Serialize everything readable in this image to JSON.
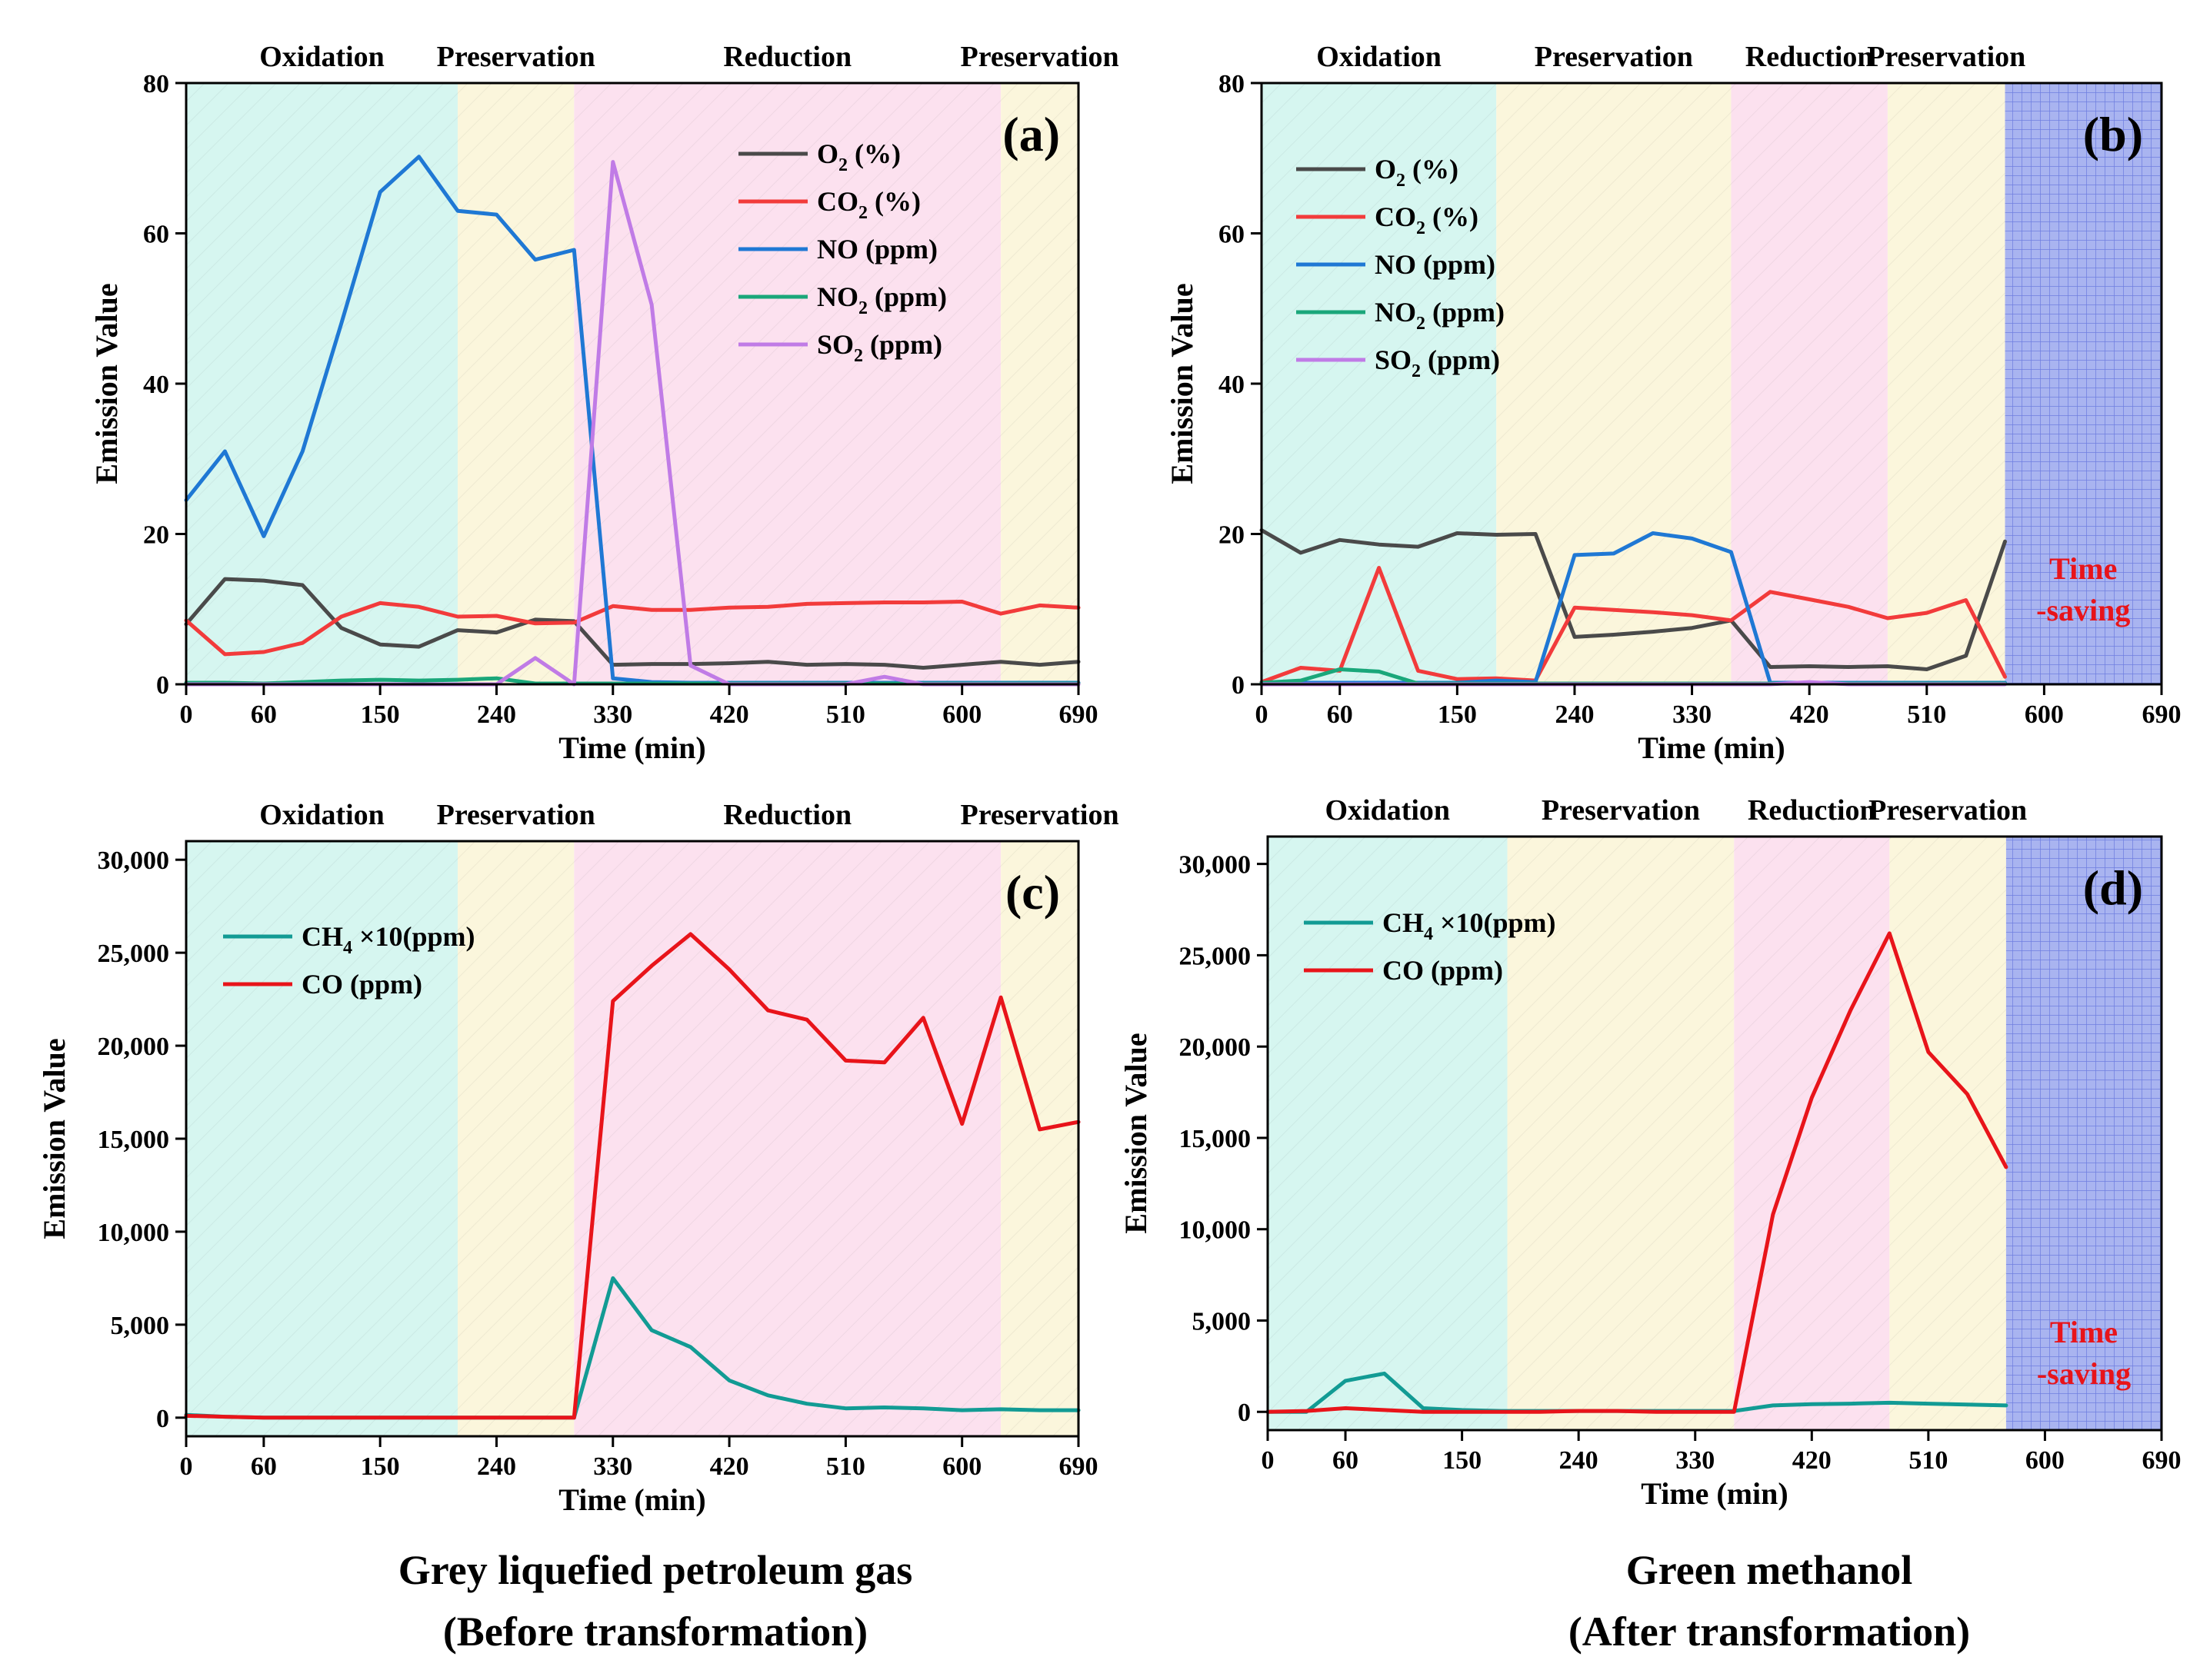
{
  "figure": {
    "colors": {
      "oxidation": "#d6f6f0",
      "preservation": "#fbf6dc",
      "reduction": "#fce1ef",
      "time_saving": "#a9b4f0",
      "O2": "#4a4a4a",
      "CO2": "#f23b3b",
      "NO": "#1f78d4",
      "NO2": "#1aa77a",
      "SO2": "#c07be6",
      "CH4": "#129b94",
      "CO": "#e8141a"
    },
    "captions": {
      "left_line1": "Grey liquefied petroleum gas",
      "left_line2": "(Before transformation)",
      "right_line1": "Green methanol",
      "right_line2": "(After transformation)"
    }
  },
  "chart_data": [
    {
      "id": "a",
      "type": "line",
      "panel_label": "(a)",
      "xlabel": "Time (min)",
      "ylabel": "Emission Value",
      "xlim": [
        0,
        690
      ],
      "ylim": [
        0,
        80
      ],
      "xticks": [
        0,
        60,
        150,
        240,
        330,
        420,
        510,
        600,
        690
      ],
      "yticks": [
        0,
        20,
        40,
        60,
        80
      ],
      "ytick_labels": [
        "0",
        "20",
        "40",
        "60",
        "80"
      ],
      "phases": [
        {
          "name": "Oxidation",
          "start": 0,
          "end": 210,
          "kind": "oxidation"
        },
        {
          "name": "Preservation",
          "start": 210,
          "end": 300,
          "kind": "preservation"
        },
        {
          "name": "Reduction",
          "start": 300,
          "end": 630,
          "kind": "reduction"
        },
        {
          "name": "Preservation",
          "start": 630,
          "end": 690,
          "kind": "preservation"
        }
      ],
      "legend": {
        "position": "top-right"
      },
      "series": [
        {
          "key": "O2",
          "name": "O",
          "sub": "2",
          "unit": " (%)",
          "x": [
            0,
            30,
            60,
            90,
            120,
            150,
            180,
            210,
            240,
            270,
            300,
            330,
            360,
            390,
            420,
            450,
            480,
            510,
            540,
            570,
            600,
            630,
            660,
            690
          ],
          "y": [
            8,
            14,
            13.8,
            13.2,
            7.5,
            5.3,
            5,
            7.2,
            6.9,
            8.6,
            8.4,
            2.6,
            2.7,
            2.7,
            2.8,
            3,
            2.6,
            2.7,
            2.6,
            2.2,
            2.6,
            3,
            2.6,
            3
          ]
        },
        {
          "key": "CO2",
          "name": "CO",
          "sub": "2",
          "unit": " (%)",
          "x": [
            0,
            30,
            60,
            90,
            120,
            150,
            180,
            210,
            240,
            270,
            300,
            330,
            360,
            390,
            420,
            450,
            480,
            510,
            540,
            570,
            600,
            630,
            660,
            690
          ],
          "y": [
            8.5,
            4,
            4.3,
            5.5,
            9,
            10.8,
            10.3,
            9,
            9.1,
            8.1,
            8.2,
            10.4,
            9.9,
            9.9,
            10.2,
            10.3,
            10.7,
            10.8,
            10.9,
            10.9,
            11,
            9.4,
            10.5,
            10.2
          ]
        },
        {
          "key": "NO",
          "name": "NO",
          "sub": "",
          "unit": " (ppm)",
          "x": [
            0,
            30,
            60,
            90,
            120,
            150,
            180,
            210,
            240,
            270,
            300,
            330,
            360,
            390,
            420,
            450,
            480,
            510,
            540,
            570,
            600,
            630,
            660,
            690
          ],
          "y": [
            24.5,
            31,
            19.7,
            31,
            48,
            65.5,
            70.2,
            63,
            62.5,
            56.5,
            57.8,
            0.8,
            0.3,
            0.2,
            0.2,
            0.2,
            0.2,
            0.2,
            0.2,
            0.2,
            0.2,
            0.2,
            0.2,
            0.2
          ]
        },
        {
          "key": "NO2",
          "name": "NO",
          "sub": "2",
          "unit": " (ppm)",
          "x": [
            0,
            30,
            60,
            90,
            120,
            150,
            180,
            210,
            240,
            270,
            300,
            330,
            360,
            390,
            420,
            450,
            480,
            510,
            540,
            570,
            600,
            630,
            660,
            690
          ],
          "y": [
            0.2,
            0.2,
            0.1,
            0.3,
            0.5,
            0.6,
            0.5,
            0.6,
            0.8,
            0.1,
            0.1,
            0.1,
            0.1,
            0.1,
            0.1,
            0.1,
            0.1,
            0.1,
            0.1,
            0.1,
            0.1,
            0.1,
            0.1,
            0.1
          ]
        },
        {
          "key": "SO2",
          "name": "SO",
          "sub": "2",
          "unit": " (ppm)",
          "x": [
            0,
            30,
            60,
            90,
            120,
            150,
            180,
            210,
            240,
            270,
            300,
            330,
            360,
            390,
            420,
            450,
            480,
            510,
            540,
            570,
            600,
            630,
            660,
            690
          ],
          "y": [
            0,
            0,
            0,
            0,
            0,
            0,
            0,
            0,
            0,
            3.5,
            0,
            69.5,
            50.5,
            2.5,
            0,
            0,
            0,
            0,
            1,
            0,
            0,
            0,
            0,
            0
          ]
        }
      ]
    },
    {
      "id": "b",
      "type": "line",
      "panel_label": "(b)",
      "xlabel": "Time (min)",
      "ylabel": "Emission Value",
      "xlim": [
        0,
        690
      ],
      "ylim": [
        0,
        80
      ],
      "xticks": [
        0,
        60,
        150,
        240,
        330,
        420,
        510,
        600,
        690
      ],
      "yticks": [
        0,
        20,
        40,
        60,
        80
      ],
      "ytick_labels": [
        "0",
        "20",
        "40",
        "60",
        "80"
      ],
      "phases": [
        {
          "name": "Oxidation",
          "start": 0,
          "end": 180,
          "kind": "oxidation"
        },
        {
          "name": "Preservation",
          "start": 180,
          "end": 360,
          "kind": "preservation"
        },
        {
          "name": "Reduction",
          "start": 360,
          "end": 480,
          "kind": "reduction"
        },
        {
          "name": "Preservation",
          "start": 480,
          "end": 570,
          "kind": "preservation"
        },
        {
          "name": "",
          "start": 570,
          "end": 690,
          "kind": "time_saving"
        }
      ],
      "annotation": {
        "line1": "Time",
        "line2": "-saving",
        "x": 630,
        "y": 14
      },
      "legend": {
        "position": "top-left"
      },
      "series": [
        {
          "key": "O2",
          "name": "O",
          "sub": "2",
          "unit": " (%)",
          "x": [
            0,
            30,
            60,
            90,
            120,
            150,
            180,
            210,
            240,
            270,
            300,
            330,
            360,
            390,
            420,
            450,
            480,
            510,
            540,
            570
          ],
          "y": [
            20.5,
            17.5,
            19.2,
            18.6,
            18.3,
            20.1,
            19.9,
            20,
            6.3,
            6.6,
            7,
            7.5,
            8.5,
            2.3,
            2.4,
            2.3,
            2.4,
            2,
            3.8,
            19
          ]
        },
        {
          "key": "CO2",
          "name": "CO",
          "sub": "2",
          "unit": " (%)",
          "x": [
            0,
            30,
            60,
            90,
            120,
            150,
            180,
            210,
            240,
            270,
            300,
            330,
            360,
            390,
            420,
            450,
            480,
            510,
            540,
            570
          ],
          "y": [
            0.3,
            2.2,
            1.8,
            15.5,
            1.8,
            0.7,
            0.8,
            0.5,
            10.2,
            9.9,
            9.6,
            9.2,
            8.5,
            12.3,
            11.3,
            10.3,
            8.8,
            9.5,
            11.2,
            1
          ]
        },
        {
          "key": "NO",
          "name": "NO",
          "sub": "",
          "unit": " (ppm)",
          "x": [
            0,
            30,
            60,
            90,
            120,
            150,
            180,
            210,
            240,
            270,
            300,
            330,
            360,
            390,
            420,
            450,
            480,
            510,
            540,
            570
          ],
          "y": [
            0.2,
            0.2,
            0.2,
            0.2,
            0.2,
            0.2,
            0.5,
            0.3,
            17.2,
            17.4,
            20.1,
            19.4,
            17.6,
            0.2,
            0.2,
            0.2,
            0.2,
            0.2,
            0.2,
            0.2
          ]
        },
        {
          "key": "NO2",
          "name": "NO",
          "sub": "2",
          "unit": " (ppm)",
          "x": [
            0,
            30,
            60,
            90,
            120,
            150,
            180,
            210,
            240,
            270,
            300,
            330,
            360,
            390,
            420,
            450,
            480,
            510,
            540,
            570
          ],
          "y": [
            0.2,
            0.5,
            2,
            1.7,
            0.1,
            0.1,
            0.1,
            0.1,
            0.1,
            0.1,
            0.1,
            0.1,
            0.1,
            0.1,
            0.1,
            0.1,
            0.1,
            0.1,
            0.1,
            0.1
          ]
        },
        {
          "key": "SO2",
          "name": "SO",
          "sub": "2",
          "unit": " (ppm)",
          "x": [
            0,
            30,
            60,
            90,
            120,
            150,
            180,
            210,
            240,
            270,
            300,
            330,
            360,
            390,
            420,
            450,
            480,
            510,
            540,
            570
          ],
          "y": [
            0,
            0,
            0,
            0,
            0,
            0,
            0,
            0,
            0,
            0,
            0,
            0,
            0,
            0,
            0.3,
            0,
            0,
            0,
            0,
            0
          ]
        }
      ]
    },
    {
      "id": "c",
      "type": "line",
      "panel_label": "(c)",
      "xlabel": "Time (min)",
      "ylabel": "Emission Value",
      "xlim": [
        0,
        690
      ],
      "ylim": [
        -1000,
        31000
      ],
      "xticks": [
        0,
        60,
        150,
        240,
        330,
        420,
        510,
        600,
        690
      ],
      "yticks": [
        0,
        5000,
        10000,
        15000,
        20000,
        25000,
        30000
      ],
      "ytick_labels": [
        "0",
        "5,000",
        "10,000",
        "15,000",
        "20,000",
        "25,000",
        "30,000"
      ],
      "phases": [
        {
          "name": "Oxidation",
          "start": 0,
          "end": 210,
          "kind": "oxidation"
        },
        {
          "name": "Preservation",
          "start": 210,
          "end": 300,
          "kind": "preservation"
        },
        {
          "name": "Reduction",
          "start": 300,
          "end": 630,
          "kind": "reduction"
        },
        {
          "name": "Preservation",
          "start": 630,
          "end": 690,
          "kind": "preservation"
        }
      ],
      "legend": {
        "position": "top-left"
      },
      "series": [
        {
          "key": "CH4",
          "name": "CH",
          "sub": "4",
          "unit": " ×10(ppm)",
          "x": [
            0,
            30,
            60,
            90,
            120,
            150,
            180,
            210,
            240,
            270,
            300,
            330,
            360,
            390,
            420,
            450,
            480,
            510,
            540,
            570,
            600,
            630,
            660,
            690
          ],
          "y": [
            150,
            50,
            0,
            0,
            0,
            0,
            0,
            0,
            0,
            0,
            0,
            7500,
            4700,
            3800,
            2000,
            1200,
            750,
            500,
            550,
            500,
            400,
            450,
            400,
            400
          ]
        },
        {
          "key": "CO",
          "name": "CO",
          "sub": "",
          "unit": " (ppm)",
          "x": [
            0,
            30,
            60,
            90,
            120,
            150,
            180,
            210,
            240,
            270,
            300,
            330,
            360,
            390,
            420,
            450,
            480,
            510,
            540,
            570,
            600,
            630,
            660,
            690
          ],
          "y": [
            100,
            50,
            0,
            0,
            0,
            0,
            0,
            0,
            0,
            0,
            0,
            22400,
            24300,
            26000,
            24100,
            21900,
            21400,
            19200,
            19100,
            21500,
            15800,
            22600,
            15500,
            15900
          ]
        }
      ]
    },
    {
      "id": "d",
      "type": "line",
      "panel_label": "(d)",
      "xlabel": "Time (min)",
      "ylabel": "Emission Value",
      "xlim": [
        0,
        690
      ],
      "ylim": [
        -1000,
        31500
      ],
      "xticks": [
        0,
        60,
        150,
        240,
        330,
        420,
        510,
        600,
        690
      ],
      "yticks": [
        0,
        5000,
        10000,
        15000,
        20000,
        25000,
        30000
      ],
      "ytick_labels": [
        "0",
        "5,000",
        "10,000",
        "15,000",
        "20,000",
        "25,000",
        "30,000"
      ],
      "phases": [
        {
          "name": "Oxidation",
          "start": 0,
          "end": 185,
          "kind": "oxidation"
        },
        {
          "name": "Preservation",
          "start": 185,
          "end": 360,
          "kind": "preservation"
        },
        {
          "name": "Reduction",
          "start": 360,
          "end": 480,
          "kind": "reduction"
        },
        {
          "name": "Preservation",
          "start": 480,
          "end": 570,
          "kind": "preservation"
        },
        {
          "name": "",
          "start": 570,
          "end": 690,
          "kind": "time_saving"
        }
      ],
      "annotation": {
        "line1": "Time",
        "line2": "-saving",
        "x": 630,
        "y": 3800
      },
      "legend": {
        "position": "top-left"
      },
      "series": [
        {
          "key": "CH4",
          "name": "CH",
          "sub": "4",
          "unit": " ×10(ppm)",
          "x": [
            0,
            30,
            60,
            90,
            120,
            150,
            180,
            210,
            240,
            270,
            300,
            330,
            360,
            390,
            420,
            450,
            480,
            510,
            540,
            570
          ],
          "y": [
            0,
            0,
            1700,
            2100,
            200,
            100,
            50,
            50,
            50,
            50,
            50,
            50,
            50,
            350,
            420,
            450,
            500,
            450,
            400,
            350
          ]
        },
        {
          "key": "CO",
          "name": "CO",
          "sub": "",
          "unit": " (ppm)",
          "x": [
            0,
            30,
            60,
            90,
            120,
            150,
            180,
            210,
            240,
            270,
            300,
            330,
            360,
            390,
            420,
            450,
            480,
            510,
            540,
            570
          ],
          "y": [
            0,
            50,
            200,
            100,
            0,
            0,
            0,
            0,
            50,
            50,
            0,
            0,
            0,
            10800,
            17200,
            22000,
            26200,
            19700,
            17400,
            13400
          ]
        }
      ]
    }
  ]
}
